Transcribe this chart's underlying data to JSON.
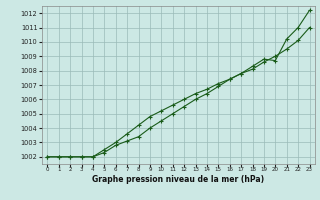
{
  "xlabel": "Graphe pression niveau de la mer (hPa)",
  "ylim": [
    1001.5,
    1012.5
  ],
  "xlim": [
    -0.5,
    23.5
  ],
  "yticks": [
    1002,
    1003,
    1004,
    1005,
    1006,
    1007,
    1008,
    1009,
    1010,
    1011,
    1012
  ],
  "xticks": [
    0,
    1,
    2,
    3,
    4,
    5,
    6,
    7,
    8,
    9,
    10,
    11,
    12,
    13,
    14,
    15,
    16,
    17,
    18,
    19,
    20,
    21,
    22,
    23
  ],
  "background_color": "#cce8e4",
  "grid_color": "#9bbbb8",
  "line_color": "#1a5c1a",
  "series1": [
    1002.0,
    1002.0,
    1002.0,
    1002.0,
    1002.0,
    1002.3,
    1002.8,
    1003.1,
    1003.4,
    1004.0,
    1004.5,
    1005.0,
    1005.5,
    1006.0,
    1006.4,
    1006.9,
    1007.4,
    1007.8,
    1008.3,
    1008.8,
    1008.7,
    1010.2,
    1011.0,
    1012.2
  ],
  "series2": [
    1002.0,
    1002.0,
    1002.0,
    1002.0,
    1002.0,
    1002.5,
    1003.0,
    1003.6,
    1004.2,
    1004.8,
    1005.2,
    1005.6,
    1006.0,
    1006.4,
    1006.7,
    1007.1,
    1007.4,
    1007.8,
    1008.1,
    1008.6,
    1009.0,
    1009.5,
    1010.1,
    1011.0
  ]
}
